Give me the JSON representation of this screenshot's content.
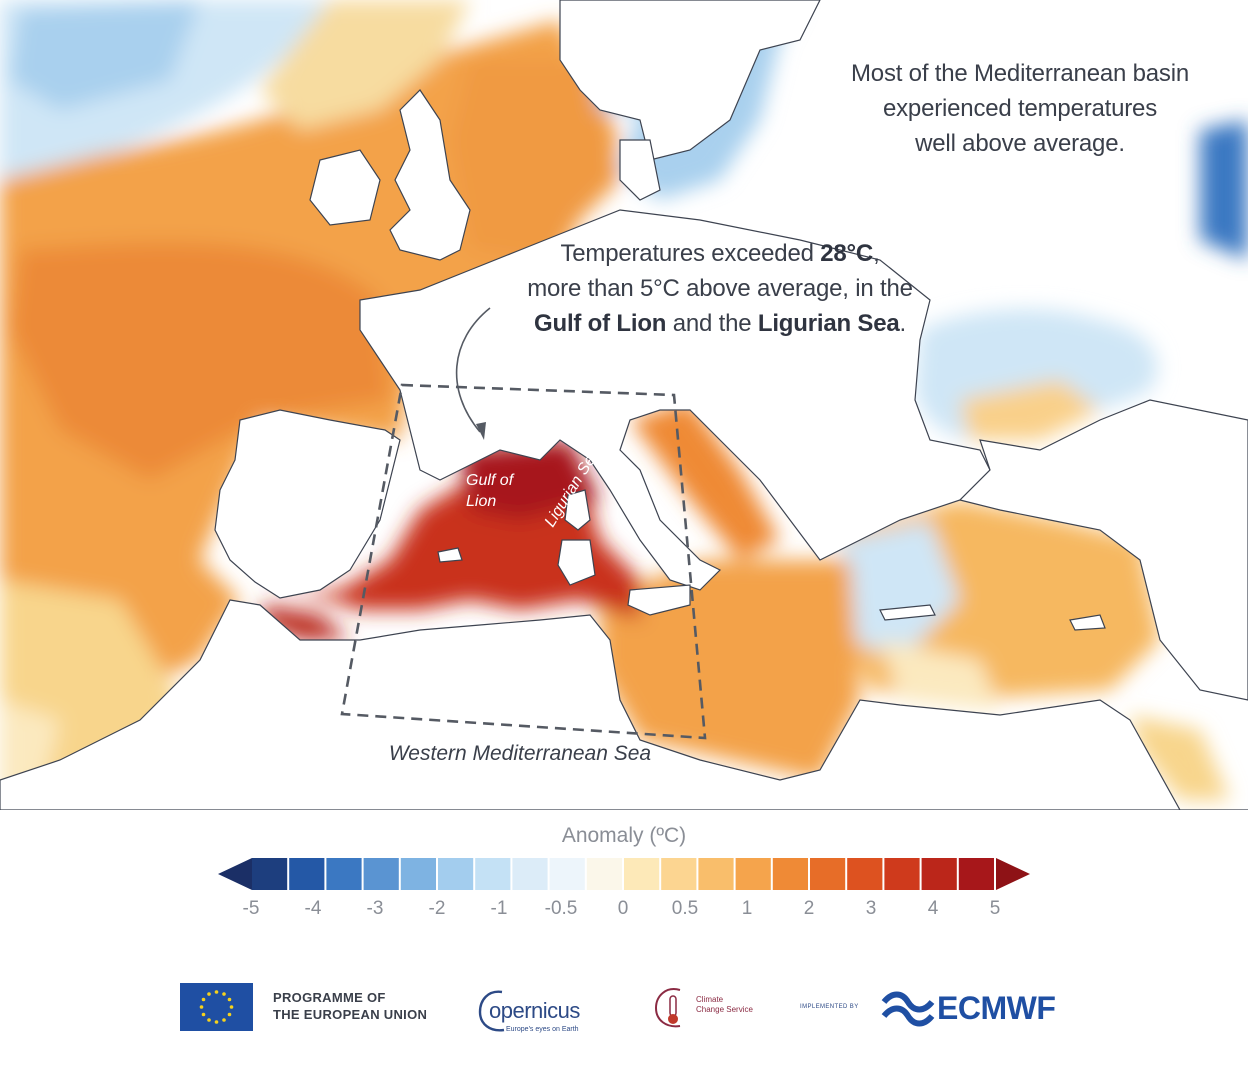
{
  "annotations": {
    "basin_line1": "Most of the Mediterranean basin",
    "basin_line2": "experienced temperatures",
    "basin_line3": "well above average.",
    "temp_line1_prefix": "Temperatures exceeded ",
    "temp_line1_bold": "28°C",
    "temp_line1_suffix": ",",
    "temp_line2": "more than 5°C above average, in the",
    "temp_line3_bold1": "Gulf of Lion",
    "temp_line3_mid": " and the ",
    "temp_line3_bold2": "Ligurian Sea",
    "temp_line3_suffix": "."
  },
  "map_labels": {
    "gulf_of_lion": "Gulf of Lion",
    "ligurian_sea": "Ligurian Sea",
    "box_label": "Western Mediterranean Sea"
  },
  "legend": {
    "title": "Anomaly (ºC)",
    "ticks": [
      "-5",
      "-4",
      "-3",
      "-2",
      "-1",
      "-0.5",
      "0",
      "0.5",
      "1",
      "2",
      "3",
      "4",
      "5"
    ],
    "colors": [
      "#1d3e7e",
      "#2458a6",
      "#3b78c2",
      "#5a94d2",
      "#7eb3e2",
      "#a3cdee",
      "#c4e1f5",
      "#dcecf8",
      "#edf5fb",
      "#fbf7ea",
      "#fde9b8",
      "#fcd591",
      "#f9be6b",
      "#f5a44c",
      "#ef8a36",
      "#e76d28",
      "#dd5220",
      "#cf3a1c",
      "#bb261a",
      "#a7171a"
    ],
    "low_end_color": "#1b2f66",
    "high_end_color": "#8e1216"
  },
  "footer": {
    "eu_line1": "PROGRAMME OF",
    "eu_line2": "THE EUROPEAN UNION",
    "copernicus": "opernicus",
    "copernicus_tagline": "Europe's eyes on Earth",
    "c3s_line1": "Climate",
    "c3s_line2": "Change Service",
    "implemented_by": "IMPLEMENTED BY",
    "ecmwf": "ECMWF"
  }
}
